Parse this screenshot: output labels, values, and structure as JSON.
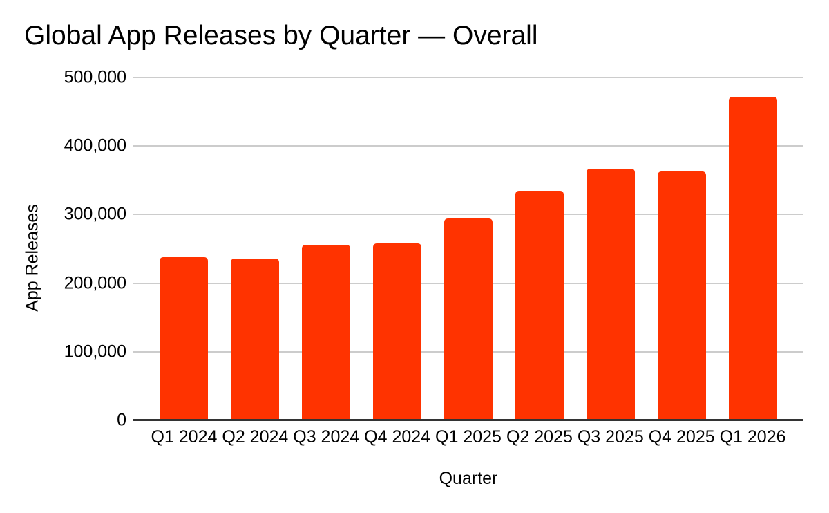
{
  "chart_data": {
    "type": "bar",
    "title": "Global App Releases by Quarter — Overall",
    "xlabel": "Quarter",
    "ylabel": "App Releases",
    "categories": [
      "Q1 2024",
      "Q2 2024",
      "Q3 2024",
      "Q4 2024",
      "Q1 2025",
      "Q2 2025",
      "Q3 2025",
      "Q4 2025",
      "Q1 2026"
    ],
    "values": [
      238000,
      236000,
      256000,
      258000,
      294000,
      335000,
      367000,
      363000,
      472000
    ],
    "ylim": [
      0,
      500000
    ],
    "yticks": [
      {
        "value": 0,
        "label": "0"
      },
      {
        "value": 100000,
        "label": "100,000"
      },
      {
        "value": 200000,
        "label": "200,000"
      },
      {
        "value": 300000,
        "label": "300,000"
      },
      {
        "value": 400000,
        "label": "400,000"
      },
      {
        "value": 500000,
        "label": "500,000"
      }
    ],
    "grid": "horizontal",
    "legend": "none",
    "colors": {
      "bar": "#ff3300",
      "gridline": "#cccccc",
      "axis_line": "#333333",
      "text": "#000000",
      "background": "#ffffff"
    }
  }
}
